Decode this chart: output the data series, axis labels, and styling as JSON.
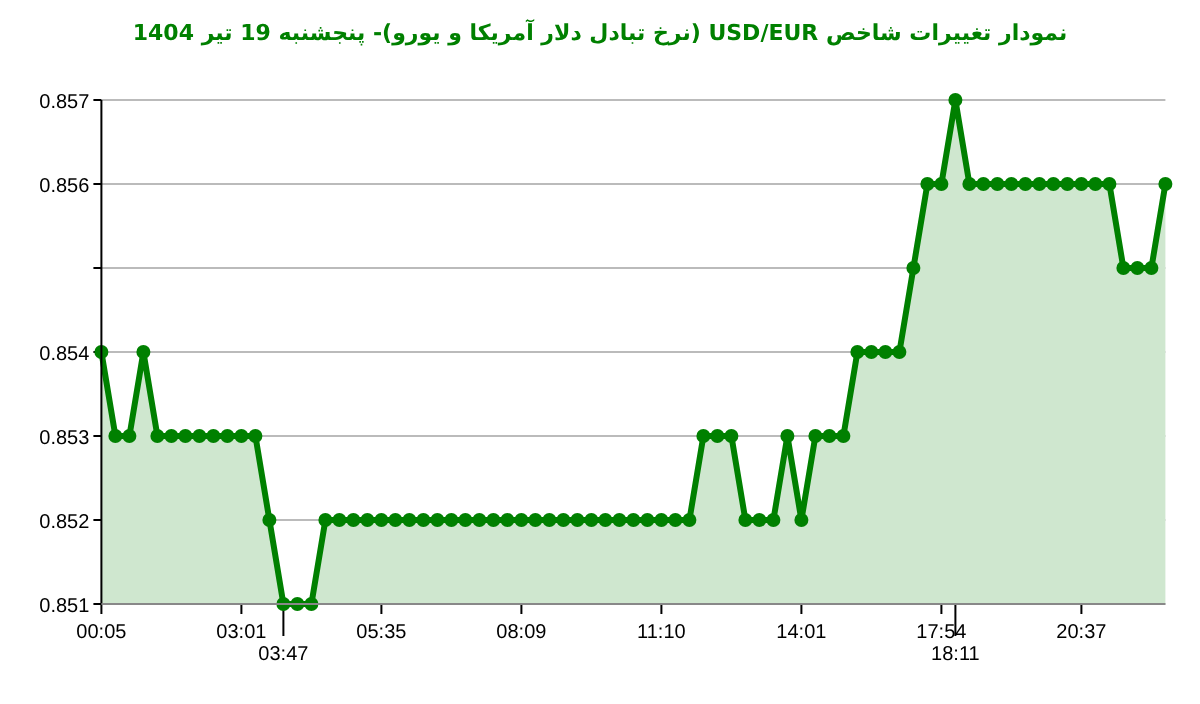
{
  "chart_data": {
    "type": "area",
    "title": "نمودار تغییرات شاخص USD/EUR (نرخ تبادل دلار آمریکا و یورو)- پنجشنبه  19 تیر 1404",
    "categories": [
      "00:05",
      null,
      null,
      null,
      null,
      null,
      null,
      null,
      null,
      null,
      "03:01",
      null,
      null,
      "03:47",
      null,
      null,
      null,
      null,
      null,
      null,
      "05:35",
      null,
      null,
      null,
      null,
      null,
      null,
      null,
      null,
      null,
      "08:09",
      null,
      null,
      null,
      null,
      null,
      null,
      null,
      null,
      null,
      "11:10",
      null,
      null,
      null,
      null,
      null,
      null,
      null,
      null,
      null,
      "14:01",
      null,
      null,
      null,
      null,
      null,
      null,
      null,
      null,
      null,
      "17:54",
      "18:11",
      null,
      null,
      null,
      null,
      null,
      null,
      null,
      null,
      "20:37",
      null,
      null,
      null,
      null,
      null,
      null
    ],
    "series": [
      {
        "color": "#008000",
        "values": [
          0.854,
          0.853,
          0.853,
          0.854,
          0.853,
          0.853,
          0.853,
          0.853,
          0.853,
          0.853,
          0.853,
          0.853,
          0.852,
          0.851,
          0.851,
          0.851,
          0.852,
          0.852,
          0.852,
          0.852,
          0.852,
          0.852,
          0.852,
          0.852,
          0.852,
          0.852,
          0.852,
          0.852,
          0.852,
          0.852,
          0.852,
          0.852,
          0.852,
          0.852,
          0.852,
          0.852,
          0.852,
          0.852,
          0.852,
          0.852,
          0.852,
          0.852,
          0.852,
          0.853,
          0.853,
          0.853,
          0.852,
          0.852,
          0.852,
          0.853,
          0.852,
          0.853,
          0.853,
          0.853,
          0.854,
          0.854,
          0.854,
          0.854,
          0.855,
          0.856,
          0.856,
          0.857,
          0.856,
          0.856,
          0.856,
          0.856,
          0.856,
          0.856,
          0.856,
          0.856,
          0.856,
          0.856,
          0.856,
          0.855,
          0.855,
          0.855,
          0.856
        ]
      }
    ],
    "ylim": [
      0.851,
      0.857
    ],
    "yticks": [
      0.851,
      0.852,
      0.853,
      0.854,
      {
        "value": 0.855,
        "label": null
      },
      0.856,
      0.857
    ],
    "grid": "y",
    "marker": "circle",
    "line_style": "solid"
  }
}
